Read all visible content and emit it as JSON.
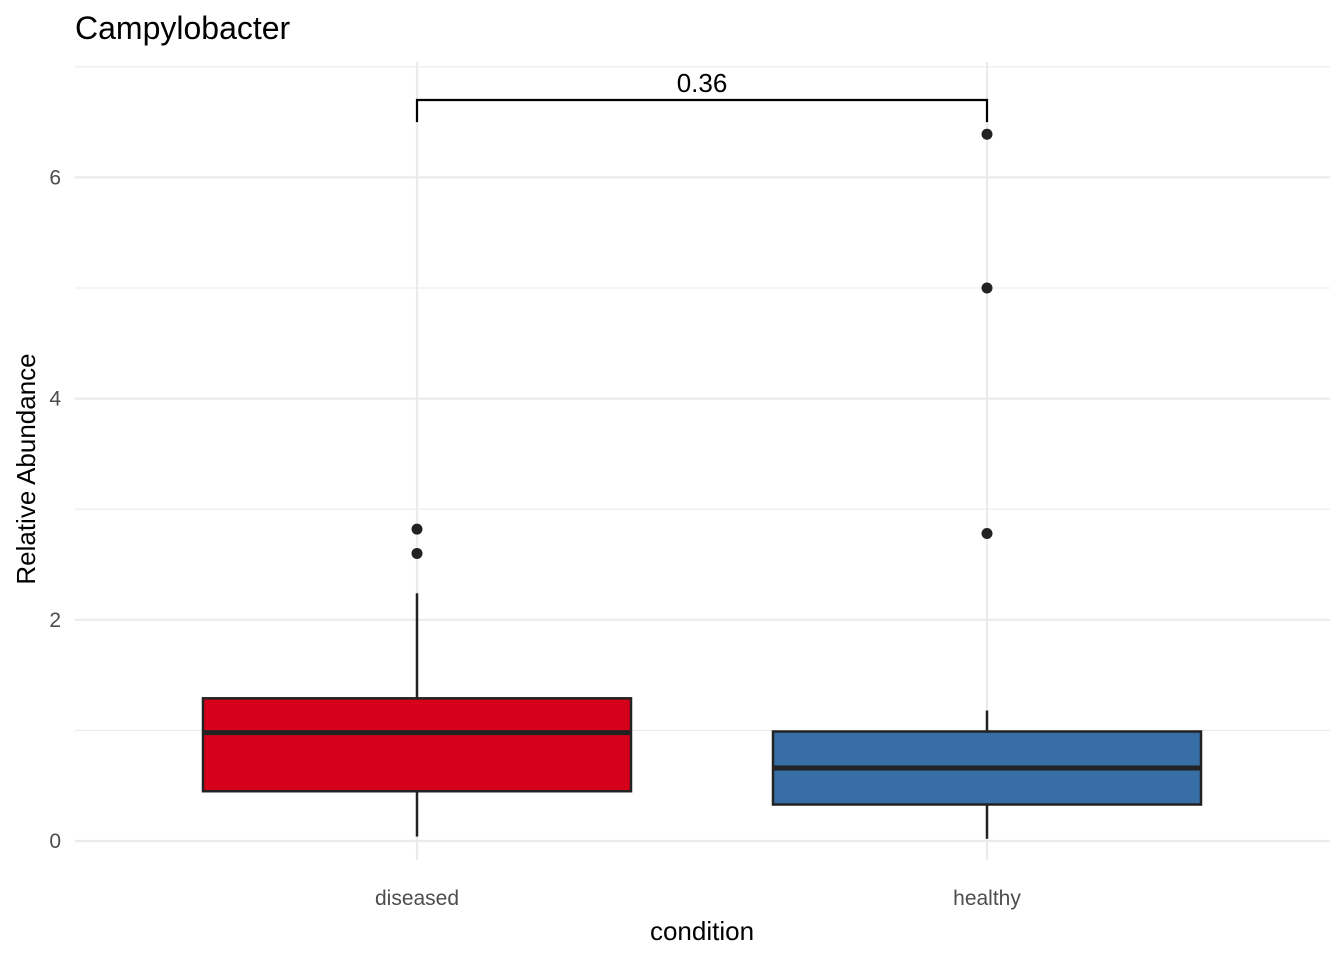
{
  "chart_data": {
    "type": "boxplot",
    "title": "Campylobacter",
    "xlabel": "condition",
    "ylabel": "Relative Abundance",
    "categories": [
      "diseased",
      "healthy"
    ],
    "ylim": [
      -0.25,
      7.0
    ],
    "yticks": [
      0,
      2,
      4,
      6
    ],
    "grid": true,
    "boxes": [
      {
        "category": "diseased",
        "color": "#d7001a",
        "whisker_low": 0.04,
        "q1": 0.45,
        "median": 0.98,
        "q3": 1.29,
        "whisker_high": 2.24,
        "outliers": [
          2.6,
          2.82
        ]
      },
      {
        "category": "healthy",
        "color": "#386ea6",
        "whisker_low": 0.02,
        "q1": 0.33,
        "median": 0.66,
        "q3": 0.99,
        "whisker_high": 1.18,
        "outliers": [
          2.78,
          5.0,
          6.39
        ]
      }
    ],
    "annotations": [
      {
        "label": "0.36",
        "from": "diseased",
        "to": "healthy",
        "y": 6.7,
        "tick_bottom": 6.5
      }
    ]
  }
}
